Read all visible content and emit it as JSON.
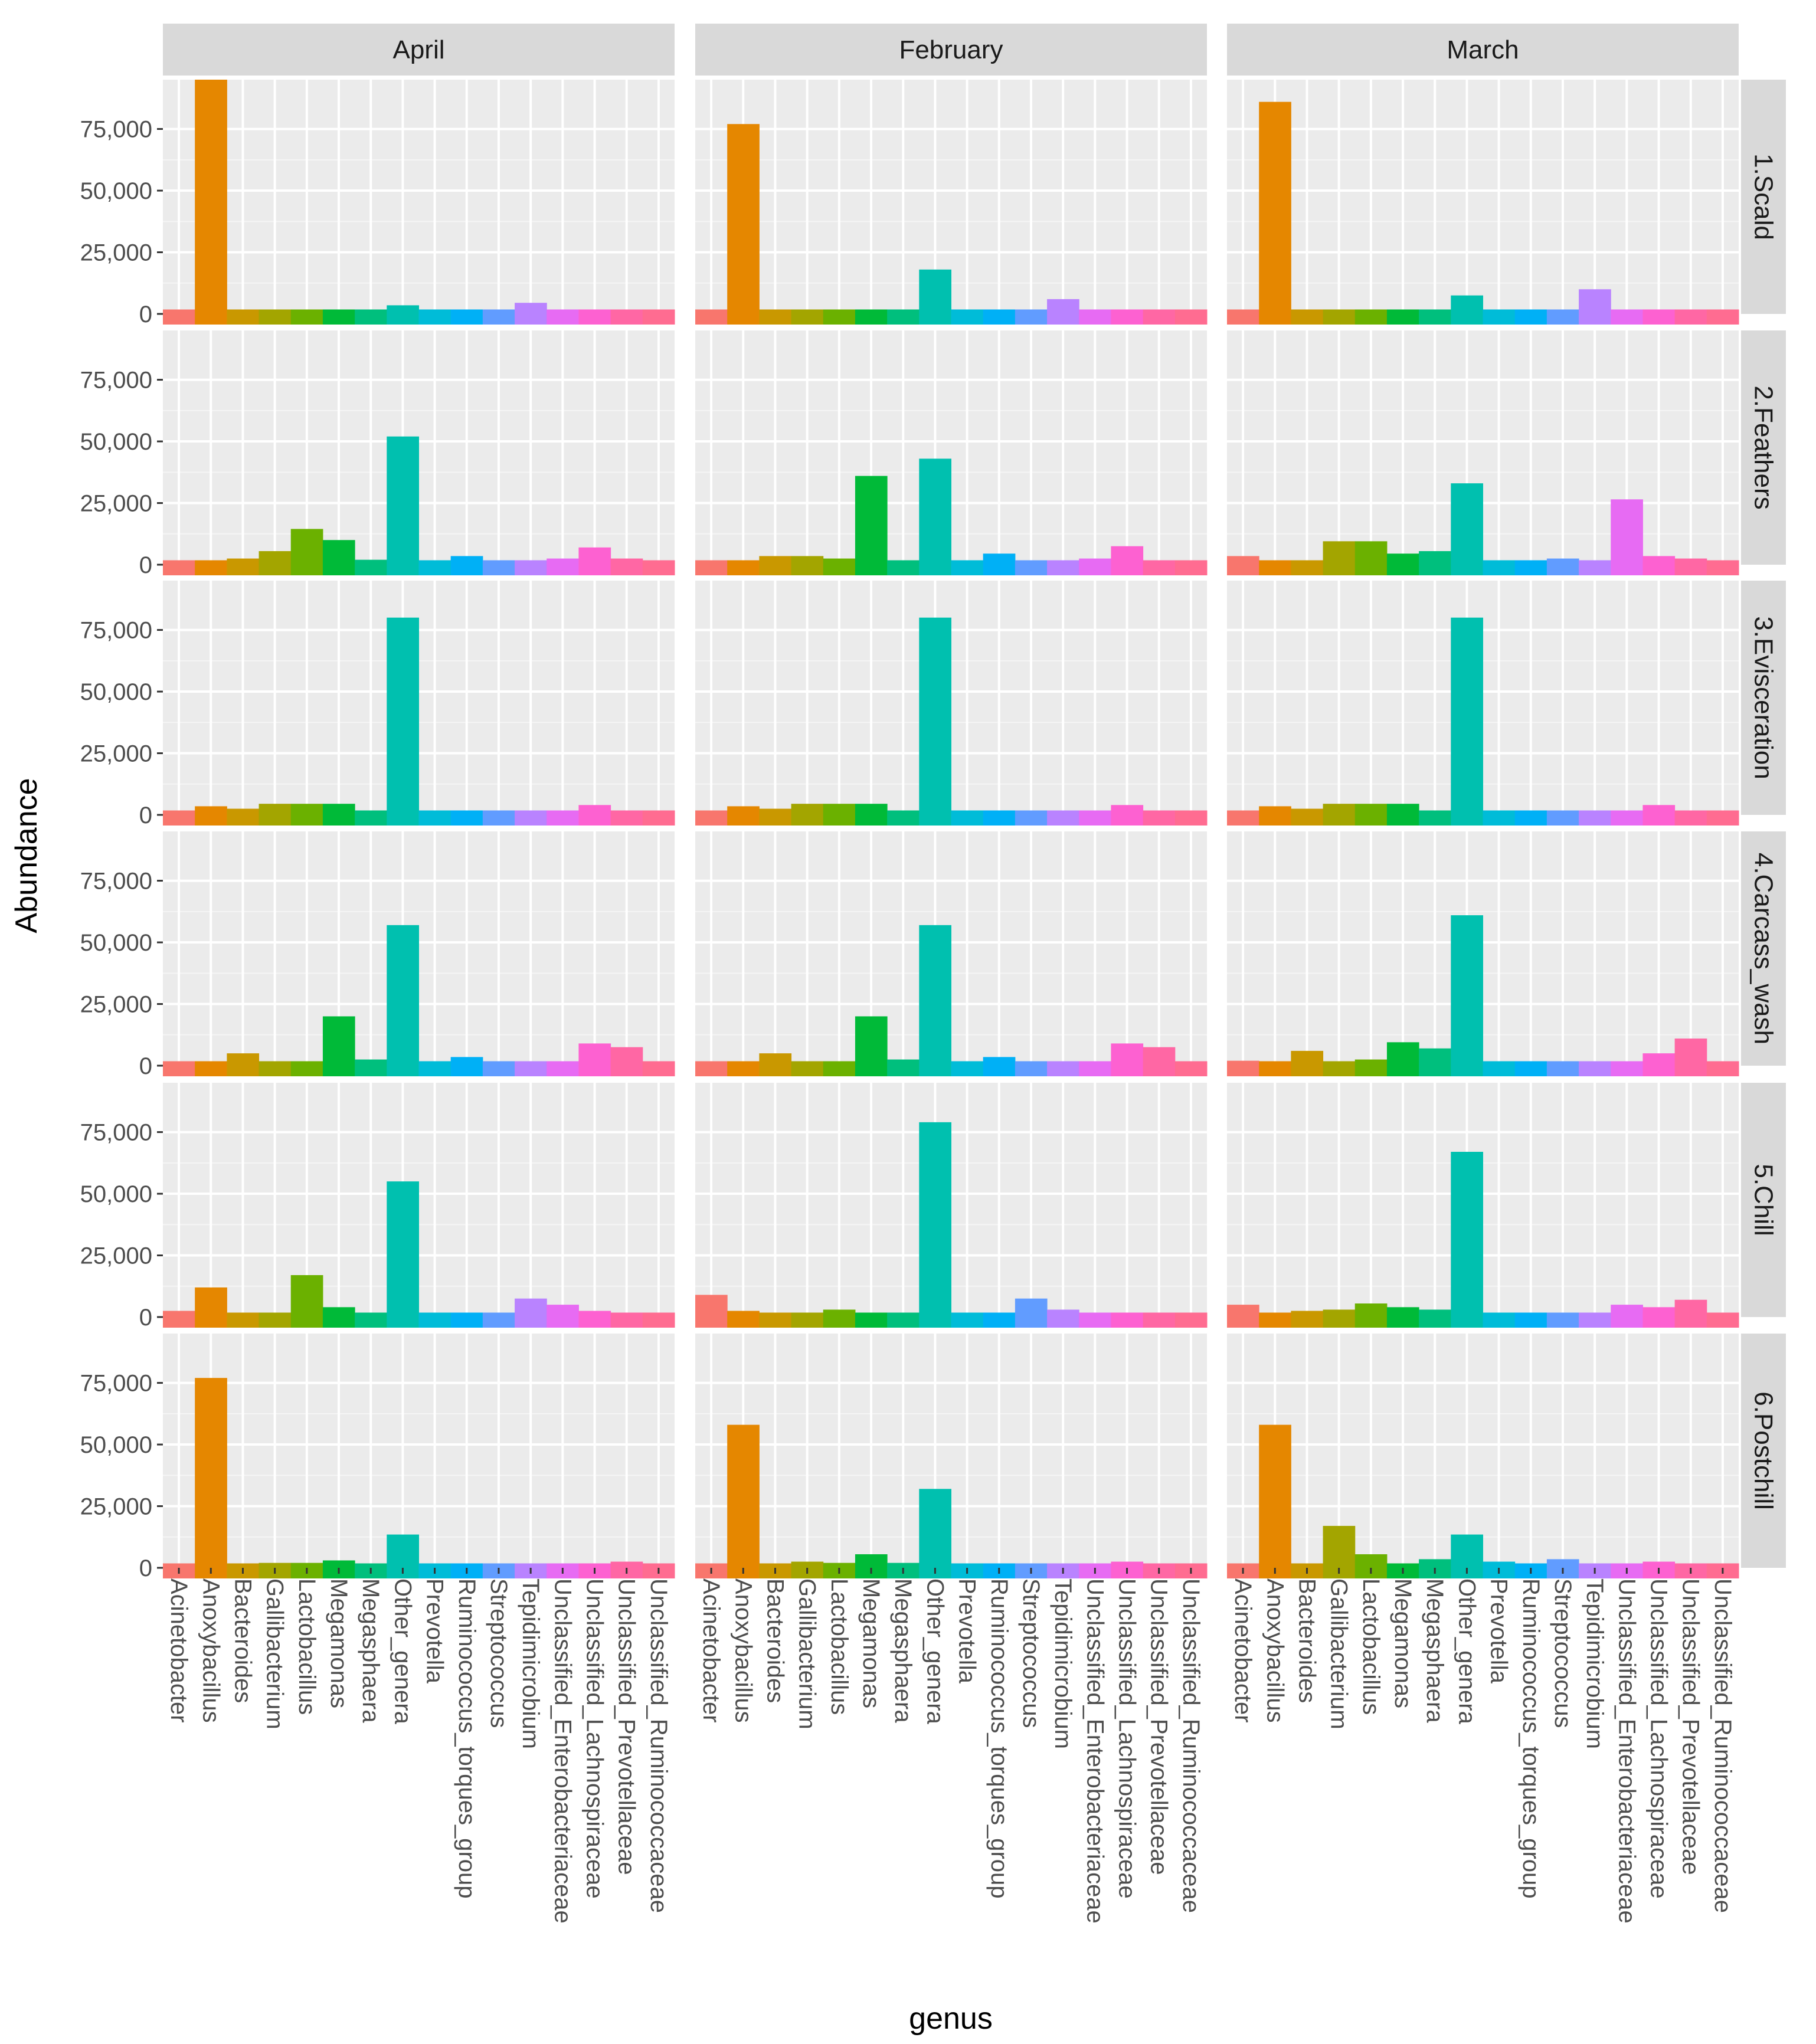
{
  "chart_data": {
    "type": "bar",
    "layout": "facet_grid",
    "xlabel": "genus",
    "ylabel": "Abundance",
    "ylim": [
      0,
      95000
    ],
    "yticks": [
      0,
      25000,
      50000,
      75000
    ],
    "ytick_labels": [
      "0",
      "25,000",
      "50,000",
      "75,000"
    ],
    "columns": [
      "April",
      "February",
      "March"
    ],
    "rows": [
      "1.Scald",
      "2.Feathers",
      "3.Evisceration",
      "4.Carcass_wash",
      "5.Chill",
      "6.Postchill"
    ],
    "genera": [
      "Acinetobacter",
      "Anoxybacillus",
      "Bacteroides",
      "Gallibacterium",
      "Lactobacillus",
      "Megamonas",
      "Megasphaera",
      "Other_genera",
      "Prevotella",
      "Ruminococcus_torques_group",
      "Streptococcus",
      "Tepidimicrobium",
      "Unclassified_Enterobacteriaceae",
      "Unclassified_Lachnospiraceae",
      "Unclassified_Prevotellaceae",
      "Unclassified_Ruminococcaceae"
    ],
    "genus_colors": [
      "#F8766D",
      "#E58700",
      "#C99800",
      "#A3A500",
      "#6BB100",
      "#00BA38",
      "#00BF7D",
      "#00C0AF",
      "#00BCD8",
      "#00B0F6",
      "#619CFF",
      "#B983FF",
      "#E76BF3",
      "#FD61D1",
      "#FF67A4",
      "#FF6C91"
    ],
    "panels": {
      "1.Scald": {
        "April": [
          0,
          95000,
          0,
          0,
          0,
          500,
          0,
          3500,
          0,
          0,
          0,
          4500,
          0,
          0,
          0,
          0
        ],
        "February": [
          0,
          77000,
          0,
          0,
          500,
          1000,
          0,
          18000,
          0,
          0,
          0,
          6000,
          0,
          0,
          0,
          500
        ],
        "March": [
          0,
          86000,
          0,
          0,
          0,
          0,
          0,
          7500,
          0,
          0,
          0,
          10000,
          0,
          0,
          0,
          0
        ]
      },
      "2.Feathers": {
        "April": [
          500,
          500,
          2500,
          5500,
          14500,
          10000,
          2000,
          52000,
          500,
          3500,
          500,
          1000,
          2500,
          7000,
          2500,
          1500
        ],
        "February": [
          500,
          1500,
          3500,
          3500,
          2500,
          36000,
          1500,
          43000,
          500,
          4500,
          500,
          500,
          2500,
          7500,
          1000,
          1500
        ],
        "March": [
          3500,
          500,
          1500,
          9500,
          9500,
          4500,
          5500,
          33000,
          1500,
          1500,
          2500,
          1000,
          26500,
          3500,
          2500,
          500
        ]
      },
      "3.Evisceration": {
        "April": [
          500,
          3500,
          2500,
          4500,
          4500,
          4500,
          1000,
          80000,
          500,
          500,
          500,
          500,
          500,
          4000,
          1500,
          500
        ],
        "February": [
          500,
          3500,
          2500,
          4500,
          4500,
          4500,
          1000,
          80000,
          500,
          500,
          500,
          500,
          500,
          4000,
          1500,
          500
        ],
        "March": [
          500,
          3500,
          2500,
          4500,
          4500,
          4500,
          1000,
          80000,
          500,
          500,
          500,
          500,
          500,
          4000,
          1500,
          500
        ]
      },
      "4.Carcass_wash": {
        "April": [
          1000,
          1000,
          5000,
          1500,
          1000,
          20000,
          2500,
          57000,
          1000,
          3500,
          500,
          1000,
          1500,
          9000,
          7500,
          1500
        ],
        "February": [
          1000,
          1000,
          5000,
          1500,
          1000,
          20000,
          2500,
          57000,
          1000,
          3500,
          500,
          1000,
          1500,
          9000,
          7500,
          1500
        ],
        "March": [
          2000,
          1000,
          6000,
          1500,
          2500,
          9500,
          7000,
          61000,
          1000,
          1500,
          500,
          1000,
          1500,
          5000,
          11000,
          1500
        ]
      },
      "5.Chill": {
        "April": [
          2500,
          12000,
          1000,
          1000,
          17000,
          4000,
          1000,
          55000,
          500,
          1000,
          1500,
          7500,
          5000,
          2500,
          1000,
          500
        ],
        "February": [
          9000,
          2500,
          1000,
          1000,
          3000,
          1500,
          1000,
          79000,
          1000,
          1500,
          7500,
          3000,
          1000,
          500,
          500,
          500
        ],
        "March": [
          5000,
          1000,
          2500,
          3000,
          5500,
          4000,
          3000,
          67000,
          500,
          500,
          500,
          1000,
          5000,
          4000,
          7000,
          500
        ]
      },
      "6.Postchill": {
        "April": [
          1000,
          77000,
          1000,
          2000,
          2000,
          3000,
          500,
          13500,
          500,
          500,
          500,
          500,
          500,
          1000,
          2500,
          1000
        ],
        "February": [
          1000,
          58000,
          1000,
          2500,
          2000,
          5500,
          2000,
          32000,
          1500,
          1000,
          1500,
          1000,
          1000,
          2500,
          1500,
          1000
        ],
        "March": [
          1500,
          58000,
          1000,
          17000,
          5500,
          1000,
          3500,
          13500,
          2500,
          1500,
          3500,
          500,
          1500,
          2500,
          1500,
          1000
        ]
      }
    }
  }
}
